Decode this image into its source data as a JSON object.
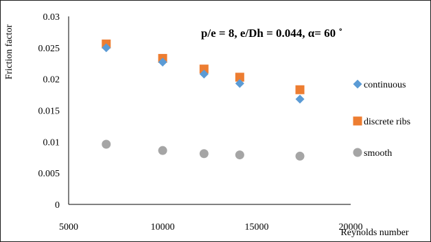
{
  "chart_data": {
    "type": "scatter",
    "title": "p/e = 8, e/Dh = 0.044, α= 60 ˚",
    "xlabel": "Reynolds number",
    "ylabel": "Friction factor",
    "xlim": [
      5000,
      20000
    ],
    "ylim": [
      0,
      0.03
    ],
    "x_ticks": [
      "5000",
      "10000",
      "15000",
      "20000"
    ],
    "y_ticks": [
      "0",
      "0.005",
      "0.01",
      "0.015",
      "0.02",
      "0.025",
      "0.03"
    ],
    "grid": false,
    "legend_position": "right",
    "series": [
      {
        "name": "continuous",
        "marker": "diamond",
        "color": "#5b9bd5",
        "points": [
          {
            "x": 7000,
            "y": 0.025
          },
          {
            "x": 10000,
            "y": 0.0227
          },
          {
            "x": 12200,
            "y": 0.0208
          },
          {
            "x": 14100,
            "y": 0.0193
          },
          {
            "x": 17300,
            "y": 0.0168
          }
        ]
      },
      {
        "name": "discrete ribs",
        "marker": "square",
        "color": "#ed7d31",
        "points": [
          {
            "x": 7000,
            "y": 0.0256
          },
          {
            "x": 10000,
            "y": 0.0233
          },
          {
            "x": 12200,
            "y": 0.0216
          },
          {
            "x": 14100,
            "y": 0.0203
          },
          {
            "x": 17300,
            "y": 0.0183
          }
        ]
      },
      {
        "name": "smooth",
        "marker": "circle",
        "color": "#a5a5a5",
        "points": [
          {
            "x": 7000,
            "y": 0.0096
          },
          {
            "x": 10000,
            "y": 0.0086
          },
          {
            "x": 12200,
            "y": 0.0081
          },
          {
            "x": 14100,
            "y": 0.0079
          },
          {
            "x": 17300,
            "y": 0.0077
          }
        ]
      }
    ]
  }
}
